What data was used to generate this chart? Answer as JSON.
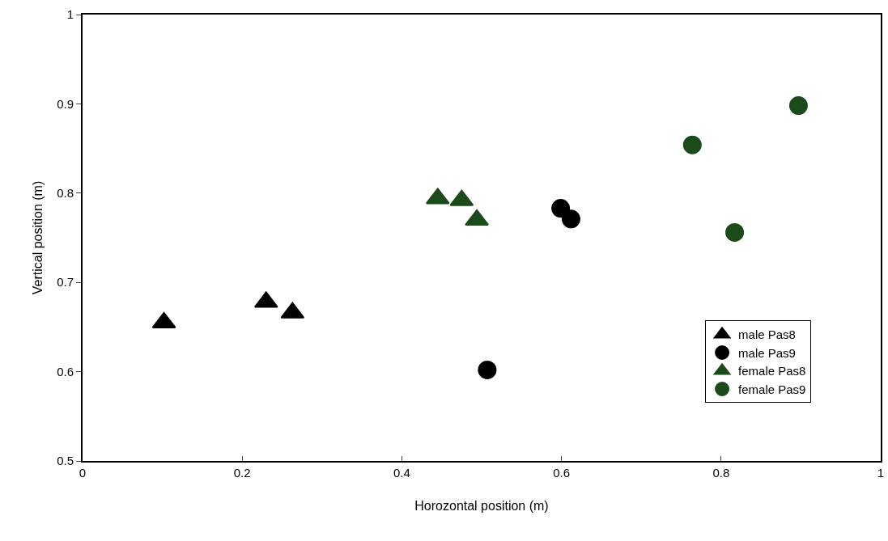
{
  "chart_data": {
    "type": "scatter",
    "xlabel": "Horozontal position (m)",
    "ylabel": "Vertical position (m)",
    "xlim": [
      0,
      1
    ],
    "xticks": [
      0,
      0.2,
      0.4,
      0.6,
      0.8,
      1
    ],
    "ylim": [
      0.5,
      1
    ],
    "yticks": [
      0.5,
      0.6,
      0.7,
      0.8,
      0.9,
      1
    ],
    "grid": false,
    "legend": "bottom right",
    "series": [
      {
        "name": "male Pas8",
        "color": "#000000",
        "marker": "triangle",
        "x": [
          0.102,
          0.23,
          0.263
        ],
        "values": [
          0.655,
          0.678,
          0.666
        ]
      },
      {
        "name": "male Pas9",
        "color": "#000000",
        "marker": "circle",
        "x": [
          0.507,
          0.599,
          0.612
        ],
        "values": [
          0.602,
          0.783,
          0.771
        ]
      },
      {
        "name": "female Pas8",
        "color": "#1b4a1b",
        "marker": "triangle",
        "x": [
          0.445,
          0.475,
          0.494
        ],
        "values": [
          0.794,
          0.792,
          0.77
        ]
      },
      {
        "name": "female Pas9",
        "color": "#1b4a1b",
        "marker": "circle",
        "x": [
          0.764,
          0.817,
          0.897
        ],
        "values": [
          0.854,
          0.756,
          0.898
        ]
      }
    ]
  }
}
